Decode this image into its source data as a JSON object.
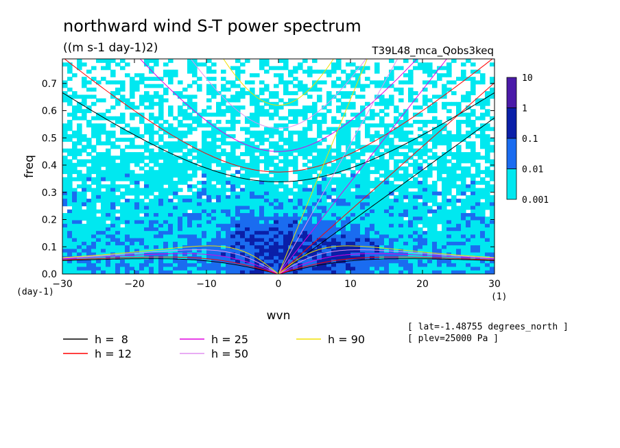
{
  "chart_data": {
    "type": "heatmap",
    "title": "northward wind S-T power spectrum",
    "subtitle": "((m s-1 day-1)2)",
    "run_label": "T39L48_mca_Qobs3keq",
    "xlabel": "wvn",
    "ylabel": "freq",
    "x_unit_label": "(1)",
    "y_unit_label": "(day-1)",
    "xlim": [
      -30,
      30
    ],
    "ylim": [
      0,
      0.79
    ],
    "x_ticks": [
      -30,
      -20,
      -10,
      0,
      10,
      20,
      30
    ],
    "x_tick_labels": [
      "-30",
      "-20",
      "-10",
      "0",
      "10",
      "20",
      "30"
    ],
    "y_ticks": [
      0,
      0.1,
      0.2,
      0.3,
      0.4,
      0.5,
      0.6,
      0.7
    ],
    "y_tick_labels": [
      "0.0",
      "0.1",
      "0.2",
      "0.3",
      "0.4",
      "0.5",
      "0.6",
      "0.7"
    ],
    "colorbar": {
      "scale": "log",
      "levels": [
        "10",
        "1",
        "0.1",
        "0.01",
        "0.001"
      ],
      "colors": [
        "#4a1aa8",
        "#0a1fa8",
        "#1a6cf0",
        "#00e8f0"
      ]
    },
    "dispersion_curves": [
      {
        "label": "h =  8",
        "h": 8,
        "color": "#000000"
      },
      {
        "label": "h = 12",
        "h": 12,
        "color": "#ff0000"
      },
      {
        "label": "h = 25",
        "h": 25,
        "color": "#e000e0"
      },
      {
        "label": "h = 50",
        "h": 50,
        "color": "#e090f0"
      },
      {
        "label": "h = 90",
        "h": 90,
        "color": "#f0e000"
      }
    ],
    "annotations": [
      "[ lat=-1.48755 degrees_north ]",
      "[ plev=25000 Pa ]"
    ]
  }
}
